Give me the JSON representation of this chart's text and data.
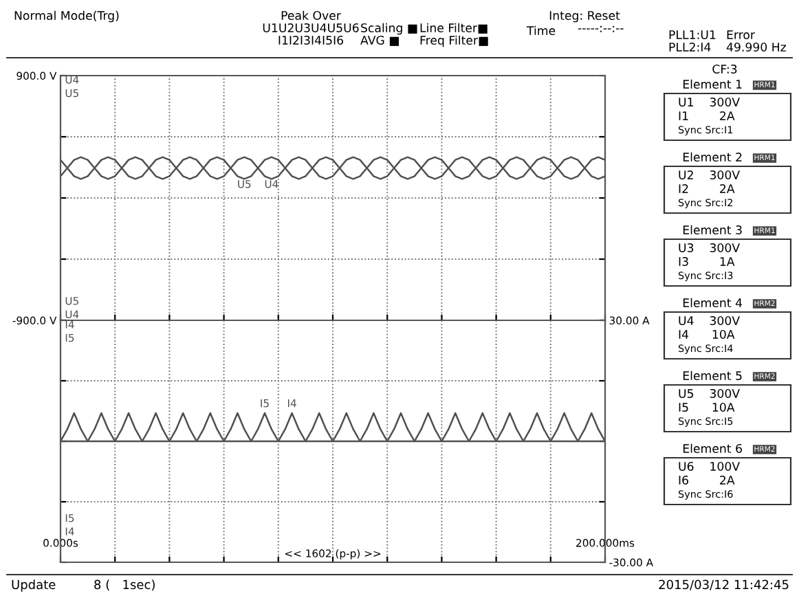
{
  "chart_data": [
    {
      "type": "other",
      "annotations": [
        "Normal Mode(Trg)",
        "Peak Over",
        "U1U2U3U4U5U6",
        "I1I2I3I4I5I6",
        "Scaling ■",
        "AVG ■",
        "Line Filter■",
        "Freq Filter■",
        "Integ: Reset",
        "Time",
        "-----:--:--",
        "PLL1:U1",
        "PLL2:I4",
        "Error",
        "49.990 Hz"
      ]
    },
    {
      "type": "line",
      "grid": true,
      "tick_labels": "y",
      "x": [
        0,
        2.5,
        5,
        7.5,
        10,
        12.5,
        15,
        17.5,
        20,
        22.5,
        25,
        27.5,
        30,
        32.5,
        35,
        37.5,
        40,
        42.5,
        45,
        47.5,
        50,
        52.5,
        55,
        57.5,
        60,
        62.5,
        65,
        67.5,
        70,
        72.5,
        75,
        77.5,
        80,
        82.5,
        85,
        87.5,
        90,
        92.5,
        95,
        97.5,
        100,
        102.5,
        105,
        107.5,
        110,
        112.5,
        115,
        117.5,
        120,
        122.5,
        125,
        127.5,
        130,
        132.5,
        135,
        137.5,
        140,
        142.5,
        145,
        147.5,
        150,
        152.5,
        155,
        157.5,
        160,
        162.5,
        165,
        167.5,
        170,
        172.5,
        175,
        177.5,
        180,
        182.5,
        185,
        187.5,
        190,
        192.5,
        195,
        197.5,
        200
      ],
      "xlim": [
        0,
        200
      ],
      "xticks": [
        {
          "value": 0,
          "label": null
        },
        {
          "value": 20,
          "label": null
        },
        {
          "value": 40,
          "label": null
        },
        {
          "value": 60,
          "label": null
        },
        {
          "value": 80,
          "label": null
        },
        {
          "value": 100,
          "label": null
        },
        {
          "value": 120,
          "label": null
        },
        {
          "value": 140,
          "label": null
        },
        {
          "value": 160,
          "label": null
        },
        {
          "value": 180,
          "label": null
        },
        {
          "value": 200,
          "label": null
        }
      ],
      "ylim": [
        -900,
        900
      ],
      "yticks": [
        {
          "value": -900,
          "label": "-900.0 V"
        },
        {
          "value": -450,
          "label": null
        },
        {
          "value": 0,
          "label": null
        },
        {
          "value": 450,
          "label": null
        },
        {
          "value": 900,
          "label": "900.0 V"
        }
      ],
      "series": [
        {
          "name": "U4",
          "color": "#505050",
          "values": [
            160,
            220,
            280,
            300,
            280,
            220,
            160,
            140,
            160,
            220,
            280,
            300,
            280,
            220,
            160,
            140,
            160,
            220,
            280,
            300,
            280,
            220,
            160,
            140,
            160,
            220,
            280,
            300,
            280,
            220,
            160,
            140,
            160,
            220,
            280,
            300,
            280,
            220,
            160,
            140,
            160,
            220,
            280,
            300,
            280,
            220,
            160,
            140,
            160,
            220,
            280,
            300,
            280,
            220,
            160,
            140,
            160,
            220,
            280,
            300,
            280,
            220,
            160,
            140,
            160,
            220,
            280,
            300,
            280,
            220,
            160,
            140,
            160,
            220,
            280,
            300,
            280,
            220,
            160,
            140,
            160
          ]
        },
        {
          "name": "U5",
          "color": "#505050",
          "values": [
            280,
            220,
            160,
            140,
            160,
            220,
            280,
            300,
            280,
            220,
            160,
            140,
            160,
            220,
            280,
            300,
            280,
            220,
            160,
            140,
            160,
            220,
            280,
            300,
            280,
            220,
            160,
            140,
            160,
            220,
            280,
            300,
            280,
            220,
            160,
            140,
            160,
            220,
            280,
            300,
            280,
            220,
            160,
            140,
            160,
            220,
            280,
            300,
            280,
            220,
            160,
            140,
            160,
            220,
            280,
            300,
            280,
            220,
            160,
            140,
            160,
            220,
            280,
            300,
            280,
            220,
            160,
            140,
            160,
            220,
            280,
            300,
            280,
            220,
            160,
            140,
            160,
            220,
            280,
            300,
            280
          ]
        }
      ]
    },
    {
      "type": "line",
      "grid": true,
      "x": [
        0,
        2.5,
        5,
        7.5,
        10,
        12.5,
        15,
        17.5,
        20,
        22.5,
        25,
        27.5,
        30,
        32.5,
        35,
        37.5,
        40,
        42.5,
        45,
        47.5,
        50,
        52.5,
        55,
        57.5,
        60,
        62.5,
        65,
        67.5,
        70,
        72.5,
        75,
        77.5,
        80,
        82.5,
        85,
        87.5,
        90,
        92.5,
        95,
        97.5,
        100,
        102.5,
        105,
        107.5,
        110,
        112.5,
        115,
        117.5,
        120,
        122.5,
        125,
        127.5,
        130,
        132.5,
        135,
        137.5,
        140,
        142.5,
        145,
        147.5,
        150,
        152.5,
        155,
        157.5,
        160,
        162.5,
        165,
        167.5,
        170,
        172.5,
        175,
        177.5,
        180,
        182.5,
        185,
        187.5,
        190,
        192.5,
        195,
        197.5,
        200
      ],
      "xlim": [
        0,
        200
      ],
      "xticks": [
        {
          "value": 0,
          "label": "0.000s"
        },
        {
          "value": 20,
          "label": null
        },
        {
          "value": 40,
          "label": null
        },
        {
          "value": 60,
          "label": null
        },
        {
          "value": 80,
          "label": null
        },
        {
          "value": 100,
          "label": null
        },
        {
          "value": 120,
          "label": null
        },
        {
          "value": 140,
          "label": null
        },
        {
          "value": 160,
          "label": null
        },
        {
          "value": 180,
          "label": null
        },
        {
          "value": 200,
          "label": "200.000ms"
        }
      ],
      "ylim": [
        -30,
        30
      ],
      "yticks": [
        {
          "value": -30,
          "label": "-30.00 A"
        },
        {
          "value": -15,
          "label": null
        },
        {
          "value": 0,
          "label": null
        },
        {
          "value": 15,
          "label": null
        },
        {
          "value": 30,
          "label": "30.00 A"
        }
      ],
      "annotations": [
        "<< 1602 (p-p) >>"
      ],
      "series": [
        {
          "name": "I4",
          "color": "#505050",
          "values": [
            0,
            3,
            7,
            3,
            0,
            0,
            0,
            0,
            0,
            3,
            7,
            3,
            0,
            0,
            0,
            0,
            0,
            3,
            7,
            3,
            0,
            0,
            0,
            0,
            0,
            3,
            7,
            3,
            0,
            0,
            0,
            0,
            0,
            3,
            7,
            3,
            0,
            0,
            0,
            0,
            0,
            3,
            7,
            3,
            0,
            0,
            0,
            0,
            0,
            3,
            7,
            3,
            0,
            0,
            0,
            0,
            0,
            3,
            7,
            3,
            0,
            0,
            0,
            0,
            0,
            3,
            7,
            3,
            0,
            0,
            0,
            0,
            0,
            3,
            7,
            3,
            0,
            0,
            0,
            0,
            0
          ]
        },
        {
          "name": "I5",
          "color": "#505050",
          "values": [
            0,
            0,
            0,
            0,
            0,
            3,
            7,
            3,
            0,
            0,
            0,
            0,
            0,
            3,
            7,
            3,
            0,
            0,
            0,
            0,
            0,
            3,
            7,
            3,
            0,
            0,
            0,
            0,
            0,
            3,
            7,
            3,
            0,
            0,
            0,
            0,
            0,
            3,
            7,
            3,
            0,
            0,
            0,
            0,
            0,
            3,
            7,
            3,
            0,
            0,
            0,
            0,
            0,
            3,
            7,
            3,
            0,
            0,
            0,
            0,
            0,
            3,
            7,
            3,
            0,
            0,
            0,
            0,
            0,
            3,
            7,
            3,
            0,
            0,
            0,
            0,
            0,
            3,
            7,
            3,
            0
          ]
        }
      ]
    },
    {
      "type": "other",
      "annotations": [
        "CF:3",
        "Element 1",
        "HRM1",
        "U1    300V",
        "I1        2A",
        "Sync Src:I1",
        "Element 2",
        "HRM1",
        "U2    300V",
        "I2        2A",
        "Sync Src:I2",
        "Element 3",
        "HRM1",
        "U3    300V",
        "I3        1A",
        "Sync Src:I3",
        "Element 4",
        "HRM2",
        "U4    300V",
        "I4      10A",
        "Sync Src:I4",
        "Element 5",
        "HRM2",
        "U5    300V",
        "I5      10A",
        "Sync Src:I5",
        "Element 6",
        "HRM2",
        "U6    100V",
        "I6        2A",
        "Sync Src:I6"
      ]
    },
    {
      "type": "other",
      "annotations": [
        "Update",
        "8 (   1sec)",
        "2015/03/12 11:42:45"
      ]
    }
  ]
}
